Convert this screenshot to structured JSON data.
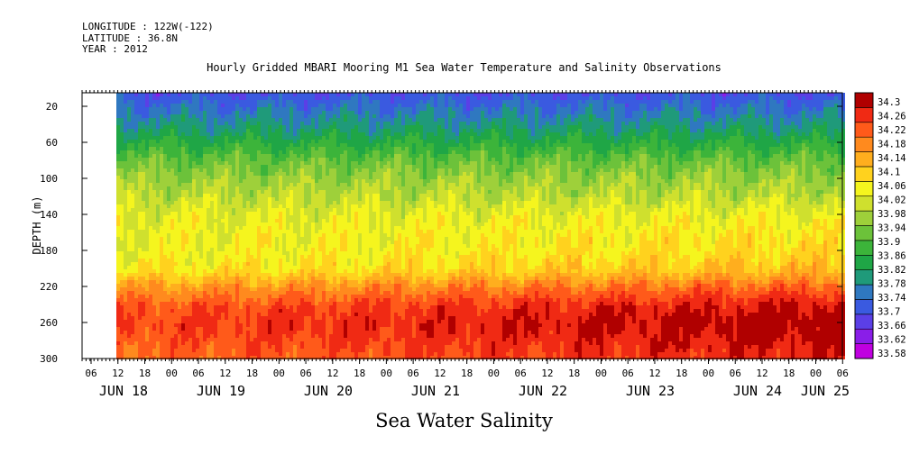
{
  "header": {
    "longitude": "LONGITUDE : 122W(-122)",
    "latitude": "LATITUDE : 36.8N",
    "year": "YEAR : 2012"
  },
  "chart_data": {
    "type": "heatmap",
    "title": "Hourly Gridded MBARI Mooring M1 Sea Water Temperature and Salinity Observations",
    "variable_label": "Sea Water Salinity",
    "ylabel": "DEPTH (m)",
    "y_ticks": [
      20,
      60,
      100,
      140,
      180,
      220,
      260,
      300
    ],
    "y_range": [
      5,
      300
    ],
    "y_inverted": true,
    "x_hour_labels": [
      "06",
      "12",
      "18",
      "00",
      "06",
      "12",
      "18",
      "00",
      "06",
      "12",
      "18",
      "00",
      "06",
      "12",
      "18",
      "00",
      "06",
      "12",
      "18",
      "00",
      "06",
      "12",
      "18",
      "00",
      "06",
      "12",
      "18",
      "00",
      "06",
      "12",
      "18",
      "00"
    ],
    "x_date_labels": [
      "JUN 18",
      "JUN 19",
      "JUN 20",
      "JUN 21",
      "JUN 22",
      "JUN 23",
      "JUN 24",
      "JUN 25"
    ],
    "data_start": "JUN 18 12",
    "colorbar_levels": [
      33.58,
      33.62,
      33.66,
      33.7,
      33.74,
      33.78,
      33.82,
      33.86,
      33.9,
      33.94,
      33.98,
      34.02,
      34.06,
      34.1,
      34.14,
      34.18,
      34.22,
      34.26,
      34.3
    ],
    "colorbar_labels": [
      "34.3",
      "34.26",
      "34.22",
      "34.18",
      "34.14",
      "34.1",
      "34.06",
      "34.02",
      "33.98",
      "33.94",
      "33.9",
      "33.86",
      "33.82",
      "33.78",
      "33.74",
      "33.7",
      "33.66",
      "33.62",
      "33.58"
    ],
    "depth_profile": [
      {
        "depth": 5,
        "value": 33.71
      },
      {
        "depth": 20,
        "value": 33.75
      },
      {
        "depth": 40,
        "value": 33.8
      },
      {
        "depth": 60,
        "value": 33.86
      },
      {
        "depth": 80,
        "value": 33.92
      },
      {
        "depth": 100,
        "value": 33.96
      },
      {
        "depth": 120,
        "value": 33.99
      },
      {
        "depth": 140,
        "value": 34.02
      },
      {
        "depth": 160,
        "value": 34.03
      },
      {
        "depth": 180,
        "value": 34.03
      },
      {
        "depth": 200,
        "value": 34.05
      },
      {
        "depth": 220,
        "value": 34.14
      },
      {
        "depth": 240,
        "value": 34.2
      },
      {
        "depth": 260,
        "value": 34.22
      },
      {
        "depth": 280,
        "value": 34.2
      },
      {
        "depth": 300,
        "value": 34.18
      }
    ],
    "deep_trend": {
      "start": 34.18,
      "end": 34.26
    }
  }
}
